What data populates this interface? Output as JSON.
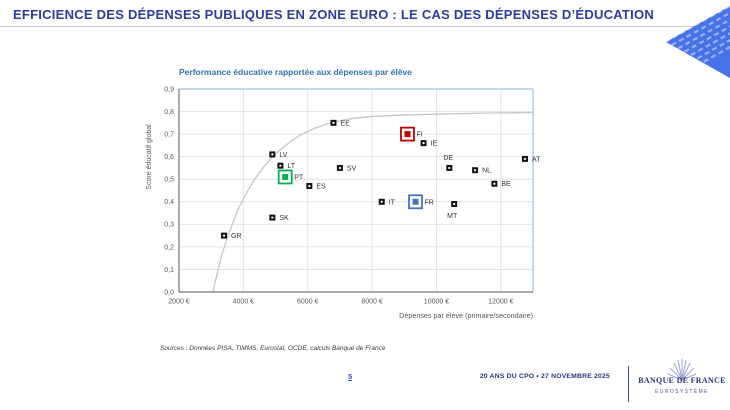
{
  "slide": {
    "title": "EFFICIENCE DES DÉPENSES PUBLIQUES EN ZONE EURO : LE CAS DES DÉPENSES D’ÉDUCATION",
    "sources": "Sources : Données PISA, TIMMS, Eurostat, OCDE, calculs Banque de France"
  },
  "footer": {
    "page_number": "5",
    "event": "20 ANS DU CPO • 27 NOVEMBRE 2025",
    "logo_name": "BANQUE DE FRANCE",
    "logo_subtitle": "EUROSYSTÈME"
  },
  "colors": {
    "title_blue": "#2E3C9E",
    "chart_title_blue": "#2E75B6",
    "plot_border_blue": "#9DC3E6",
    "axis_gray": "#595959",
    "gridline_gray": "#E4E4E4",
    "curve_gray": "#C6C6C6",
    "marker_black": "#141414",
    "highlight_red": "#C00000",
    "highlight_green": "#00B050",
    "highlight_blue": "#4472C4",
    "corner_triangle_blue": "#4673E8",
    "footer_blue": "#28357E"
  },
  "chart_data": {
    "type": "scatter",
    "title": "Performance éducative rapportée aux dépenses par élève",
    "xlabel": "Dépenses par élève (primaire/secondaire)",
    "ylabel": "Score éducatif global",
    "xlim": [
      2000,
      13000
    ],
    "ylim": [
      0,
      0.9
    ],
    "grid": true,
    "x_ticks": [
      2000,
      4000,
      6000,
      8000,
      10000,
      12000
    ],
    "x_tick_labels": [
      "2000 €",
      "4000 €",
      "6000 €",
      "8000 €",
      "10000 €",
      "12000 €"
    ],
    "y_tick_labels": [
      "0,0",
      "0,1",
      "0,2",
      "0,3",
      "0,4",
      "0,5",
      "0,6",
      "0,7",
      "0,8",
      "0,9"
    ],
    "points": [
      {
        "label": "GR",
        "x": 3400,
        "y": 0.25,
        "label_pos": "right",
        "highlight": null
      },
      {
        "label": "SK",
        "x": 4900,
        "y": 0.33,
        "label_pos": "right",
        "highlight": null
      },
      {
        "label": "LV",
        "x": 4900,
        "y": 0.61,
        "label_pos": "right",
        "highlight": null
      },
      {
        "label": "LT",
        "x": 5150,
        "y": 0.56,
        "label_pos": "right",
        "highlight": null
      },
      {
        "label": "PT",
        "x": 5300,
        "y": 0.51,
        "label_pos": "right",
        "highlight": "#00B050"
      },
      {
        "label": "ES",
        "x": 6050,
        "y": 0.47,
        "label_pos": "right",
        "highlight": null
      },
      {
        "label": "EE",
        "x": 6800,
        "y": 0.75,
        "label_pos": "right",
        "highlight": null
      },
      {
        "label": "SV",
        "x": 7000,
        "y": 0.55,
        "label_pos": "right",
        "highlight": null
      },
      {
        "label": "IT",
        "x": 8300,
        "y": 0.4,
        "label_pos": "right",
        "highlight": null
      },
      {
        "label": "FI",
        "x": 9100,
        "y": 0.7,
        "label_pos": "right",
        "highlight": "#C00000"
      },
      {
        "label": "FR",
        "x": 9350,
        "y": 0.4,
        "label_pos": "right",
        "highlight": "#4472C4"
      },
      {
        "label": "IE",
        "x": 9600,
        "y": 0.66,
        "label_pos": "right",
        "highlight": null
      },
      {
        "label": "DE",
        "x": 10400,
        "y": 0.55,
        "label_pos": "above",
        "highlight": null
      },
      {
        "label": "MT",
        "x": 10550,
        "y": 0.39,
        "label_pos": "below",
        "highlight": null
      },
      {
        "label": "NL",
        "x": 11200,
        "y": 0.54,
        "label_pos": "right",
        "highlight": null
      },
      {
        "label": "BE",
        "x": 11800,
        "y": 0.48,
        "label_pos": "right",
        "highlight": null
      },
      {
        "label": "AT",
        "x": 12750,
        "y": 0.59,
        "label_pos": "right",
        "highlight": null
      }
    ],
    "frontier_curve": [
      [
        3050,
        0.0
      ],
      [
        3200,
        0.09
      ],
      [
        3340,
        0.17
      ],
      [
        3500,
        0.24
      ],
      [
        3680,
        0.31
      ],
      [
        3850,
        0.37
      ],
      [
        4100,
        0.44
      ],
      [
        4350,
        0.5
      ],
      [
        4580,
        0.545
      ],
      [
        4850,
        0.59
      ],
      [
        5140,
        0.63
      ],
      [
        5450,
        0.665
      ],
      [
        5760,
        0.695
      ],
      [
        6200,
        0.725
      ],
      [
        6700,
        0.75
      ],
      [
        7300,
        0.768
      ],
      [
        7900,
        0.777
      ],
      [
        8800,
        0.784
      ],
      [
        9800,
        0.788
      ],
      [
        11400,
        0.793
      ],
      [
        13000,
        0.796
      ]
    ],
    "legend": "none"
  }
}
